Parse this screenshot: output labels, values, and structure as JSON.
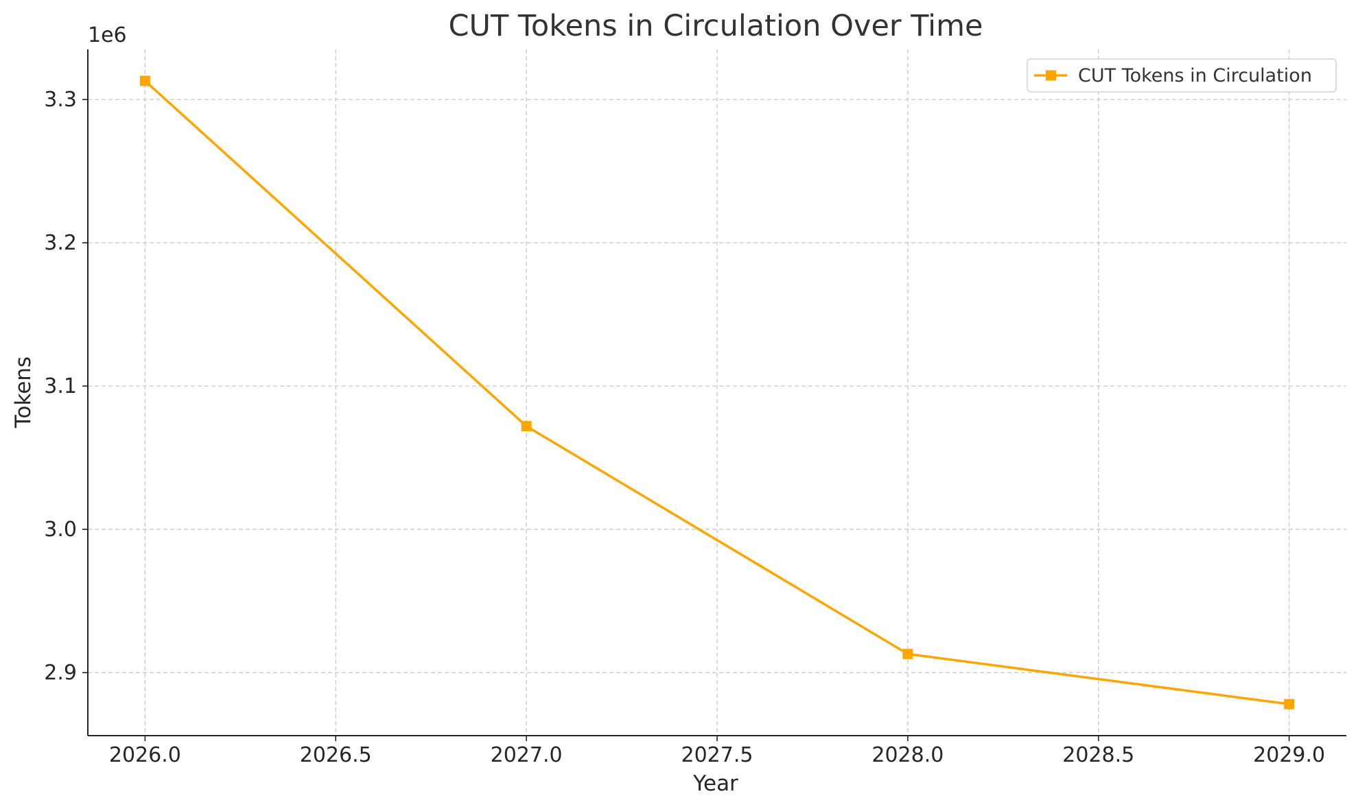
{
  "chart_data": {
    "type": "line",
    "title": "CUT Tokens in Circulation Over Time",
    "xlabel": "Year",
    "ylabel": "Tokens",
    "y_offset_label": "1e6",
    "y_scale": 1000000,
    "x": [
      2026,
      2027,
      2028,
      2029
    ],
    "xlim": [
      2025.85,
      2029.15
    ],
    "ylim": [
      2856000,
      3335000
    ],
    "x_ticks": [
      2026.0,
      2026.5,
      2027.0,
      2027.5,
      2028.0,
      2028.5,
      2029.0
    ],
    "x_tick_labels": [
      "2026.0",
      "2026.5",
      "2027.0",
      "2027.5",
      "2028.0",
      "2028.5",
      "2029.0"
    ],
    "y_ticks": [
      2900000,
      3000000,
      3100000,
      3200000,
      3300000
    ],
    "y_tick_labels": [
      "2.9",
      "3.0",
      "3.1",
      "3.2",
      "3.3"
    ],
    "grid": true,
    "legend": "top-right",
    "series": [
      {
        "name": "CUT Tokens in Circulation",
        "color": "#FFA500",
        "marker": "square",
        "values": [
          3313000,
          3072000,
          2913000,
          2878000
        ]
      }
    ]
  }
}
